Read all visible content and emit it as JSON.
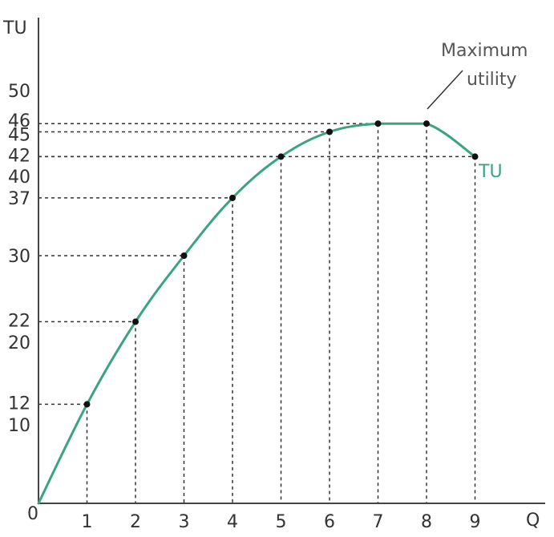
{
  "chart_data": {
    "type": "line",
    "title": "",
    "xlabel": "Q",
    "ylabel": "TU",
    "origin_label": "0",
    "x": [
      0,
      1,
      2,
      3,
      4,
      5,
      6,
      7,
      8,
      9
    ],
    "series": [
      {
        "name": "TU",
        "values": [
          0,
          12,
          22,
          30,
          37,
          42,
          45,
          46,
          46,
          42
        ]
      }
    ],
    "x_ticks": [
      "1",
      "2",
      "3",
      "4",
      "5",
      "6",
      "7",
      "8",
      "9"
    ],
    "y_ticks": [
      "10",
      "12",
      "20",
      "22",
      "30",
      "37",
      "40",
      "42",
      "45",
      "46",
      "50"
    ],
    "xlim": [
      0,
      10
    ],
    "ylim": [
      0,
      55
    ],
    "grid": false,
    "annotation": {
      "lines": [
        "Maximum",
        "utility"
      ],
      "points_to": {
        "x": 8,
        "y": 46
      }
    },
    "colors": {
      "curve": "#3aa380",
      "axis": "#444444",
      "guide": "#333333",
      "marker": "#111111"
    }
  }
}
